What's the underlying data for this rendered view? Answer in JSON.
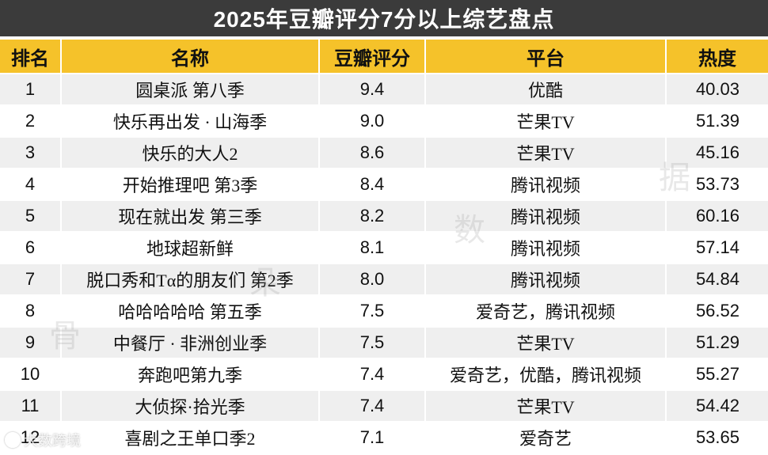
{
  "title": "2025年豆瓣评分7分以上综艺盘点",
  "columns": [
    "排名",
    "名称",
    "豆瓣评分",
    "平台",
    "热度"
  ],
  "rows": [
    {
      "rank": "1",
      "name": "圆桌派 第八季",
      "score": "9.4",
      "platform": "优酷",
      "heat": "40.03"
    },
    {
      "rank": "2",
      "name": "快乐再出发 · 山海季",
      "score": "9.0",
      "platform": "芒果TV",
      "heat": "51.39"
    },
    {
      "rank": "3",
      "name": "快乐的大人2",
      "score": "8.6",
      "platform": "芒果TV",
      "heat": "45.16"
    },
    {
      "rank": "4",
      "name": "开始推理吧 第3季",
      "score": "8.4",
      "platform": "腾讯视频",
      "heat": "53.73"
    },
    {
      "rank": "5",
      "name": "现在就出发 第三季",
      "score": "8.2",
      "platform": "腾讯视频",
      "heat": "60.16"
    },
    {
      "rank": "6",
      "name": "地球超新鲜",
      "score": "8.1",
      "platform": "腾讯视频",
      "heat": "57.14"
    },
    {
      "rank": "7",
      "name": "脱口秀和Tα的朋友们 第2季",
      "score": "8.0",
      "platform": "腾讯视频",
      "heat": "54.84"
    },
    {
      "rank": "8",
      "name": "哈哈哈哈哈 第五季",
      "score": "7.5",
      "platform": "爱奇艺，腾讯视频",
      "heat": "56.52"
    },
    {
      "rank": "9",
      "name": "中餐厅 · 非洲创业季",
      "score": "7.5",
      "platform": "芒果TV",
      "heat": "51.29"
    },
    {
      "rank": "10",
      "name": "奔跑吧第九季",
      "score": "7.4",
      "platform": "爱奇艺，优酷，腾讯视频",
      "heat": "55.27"
    },
    {
      "rank": "11",
      "name": "大侦探·拾光季",
      "score": "7.4",
      "platform": "芒果TV",
      "heat": "54.42"
    },
    {
      "rank": "12",
      "name": "喜剧之王单口季2",
      "score": "7.1",
      "platform": "爱奇艺",
      "heat": "53.65"
    }
  ],
  "watermark": {
    "chars": [
      "骨",
      "朵",
      "数",
      "据"
    ],
    "brand": "犬数跨境"
  },
  "colors": {
    "title_bg": "#3b3b3b",
    "header_bg": "#f5c22a",
    "stripe": "#efefef"
  }
}
